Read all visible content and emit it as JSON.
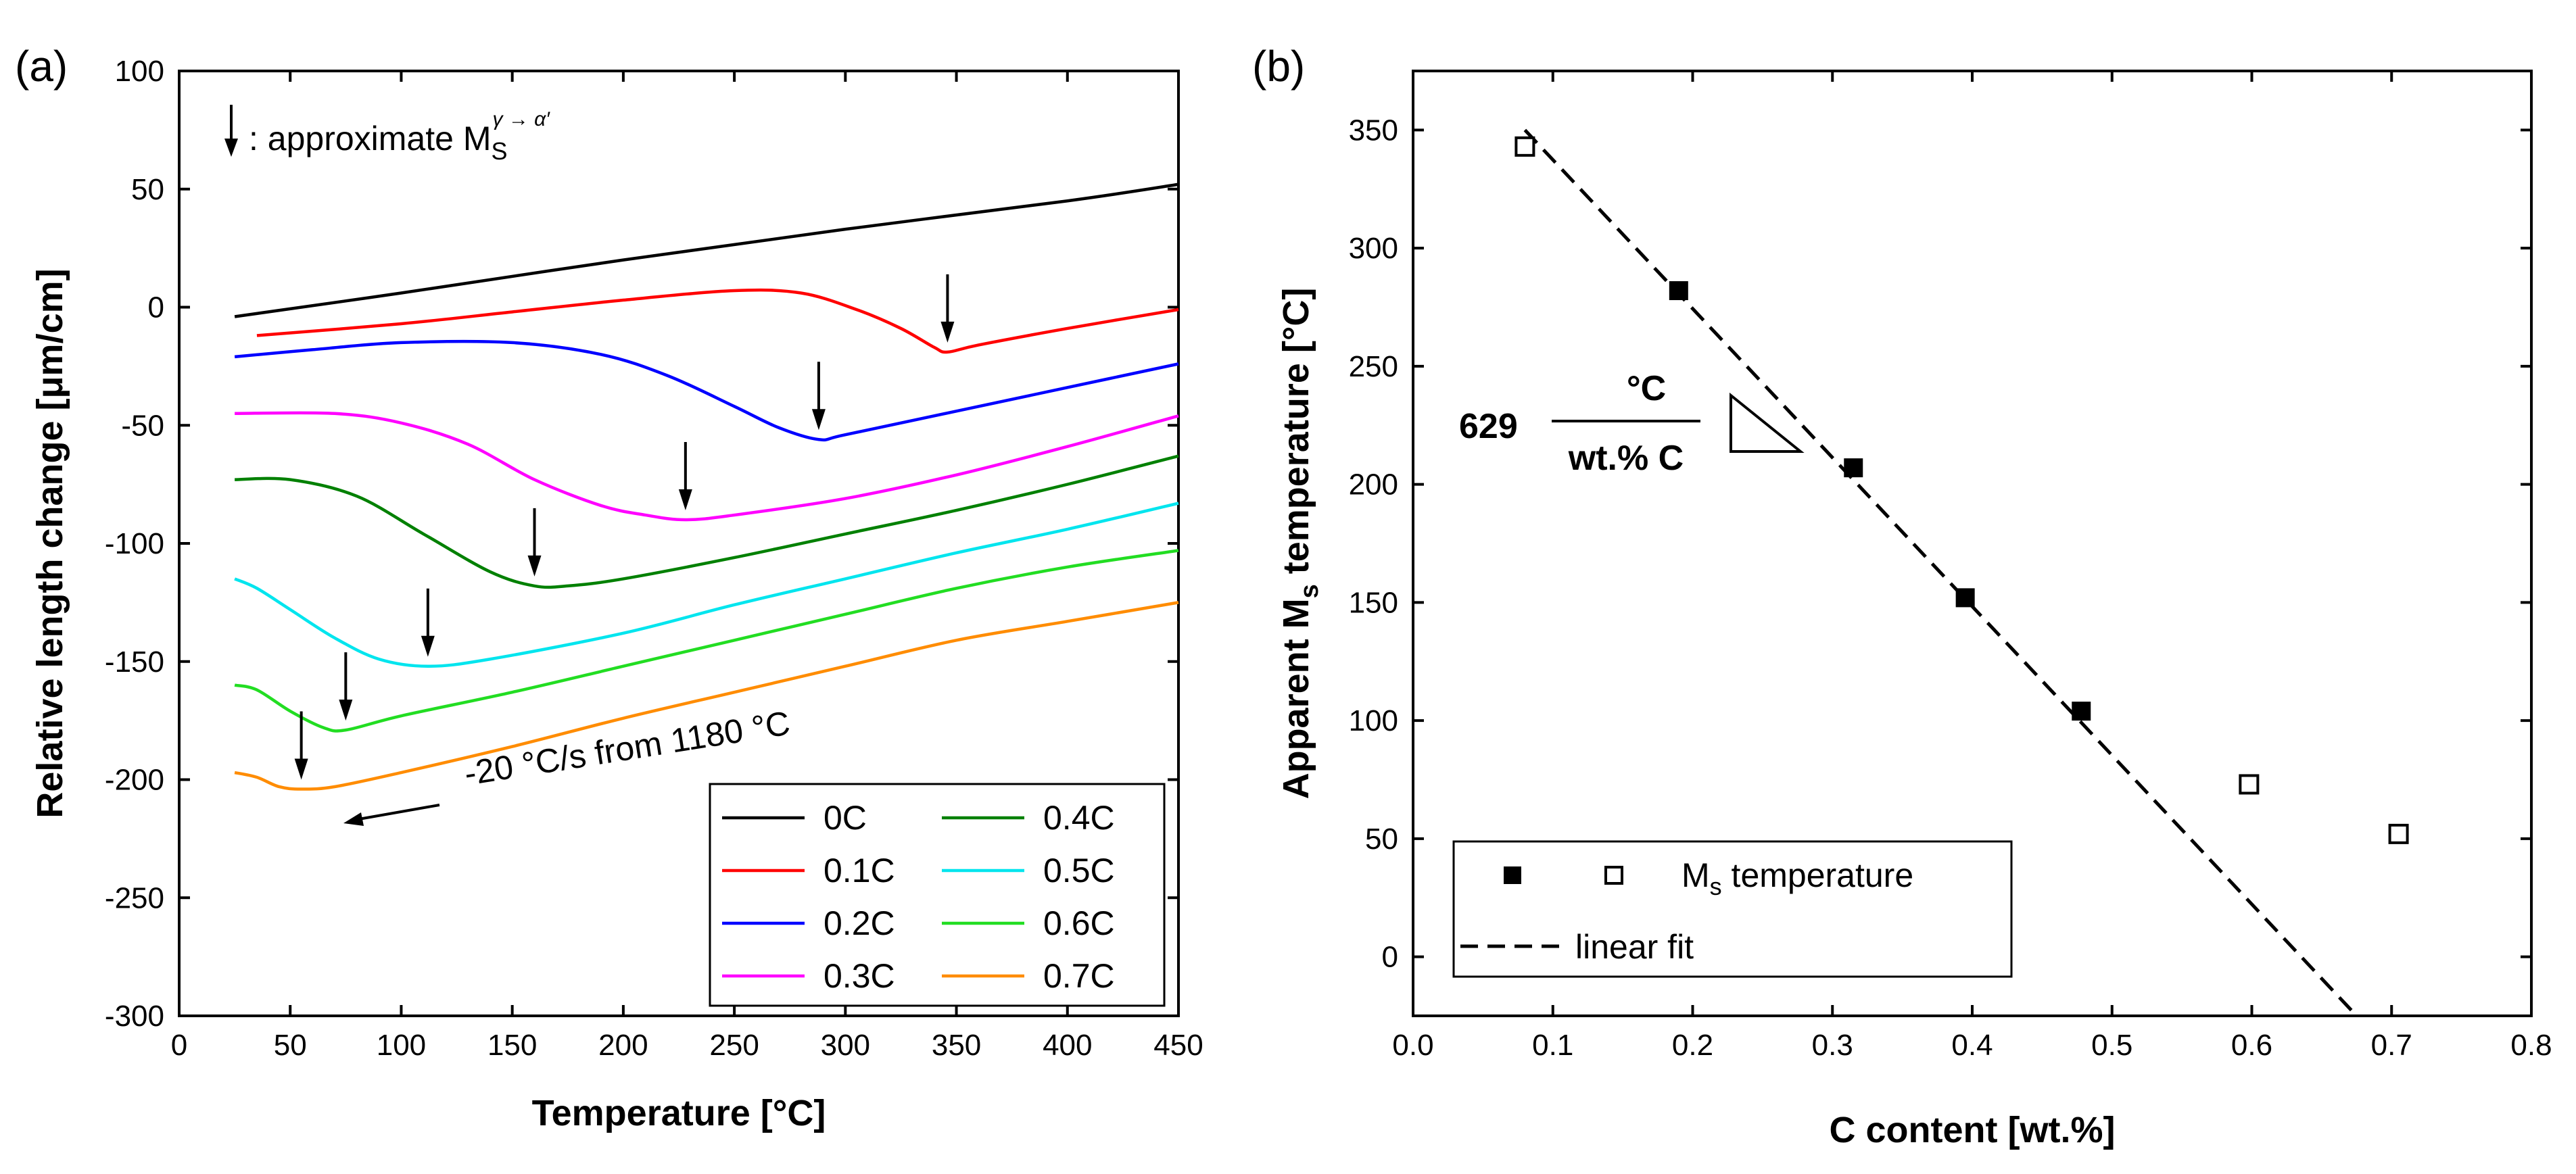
{
  "chart_data": [
    {
      "panel": "(a)",
      "type": "line",
      "xlabel": "Temperature [°C]",
      "ylabel": "Relative length change [μm/cm]",
      "xlim": [
        0,
        450
      ],
      "ylim": [
        -300,
        100
      ],
      "xticks": [
        0,
        50,
        100,
        150,
        200,
        250,
        300,
        350,
        400,
        450
      ],
      "yticks": [
        -300,
        -250,
        -200,
        -150,
        -100,
        -50,
        0,
        50,
        100
      ],
      "annotation_ms": {
        "prefix": ": approximate M",
        "sub": "S",
        "sup": "γ → α′"
      },
      "cooling_note": "-20 °C/s from 1180 °C",
      "series": [
        {
          "name": "0C",
          "color": "#000000",
          "points": [
            [
              25,
              -4
            ],
            [
              100,
              6
            ],
            [
              200,
              20
            ],
            [
              300,
              33
            ],
            [
              400,
              45
            ],
            [
              450,
              52
            ]
          ],
          "ms": null
        },
        {
          "name": "0.1C",
          "color": "#ff0000",
          "points": [
            [
              35,
              -12
            ],
            [
              100,
              -7
            ],
            [
              150,
              -2
            ],
            [
              200,
              3
            ],
            [
              250,
              7
            ],
            [
              280,
              6
            ],
            [
              305,
              -1
            ],
            [
              325,
              -9
            ],
            [
              340,
              -17
            ],
            [
              346,
              -19
            ],
            [
              360,
              -16
            ],
            [
              400,
              -9
            ],
            [
              450,
              -1
            ]
          ],
          "ms": [
            346,
            -19
          ]
        },
        {
          "name": "0.2C",
          "color": "#0000ff",
          "points": [
            [
              25,
              -21
            ],
            [
              60,
              -18
            ],
            [
              100,
              -15
            ],
            [
              150,
              -15
            ],
            [
              190,
              -20
            ],
            [
              220,
              -29
            ],
            [
              250,
              -42
            ],
            [
              270,
              -51
            ],
            [
              288,
              -56
            ],
            [
              300,
              -54
            ],
            [
              350,
              -44
            ],
            [
              400,
              -34
            ],
            [
              450,
              -24
            ]
          ],
          "ms": [
            288,
            -56
          ]
        },
        {
          "name": "0.3C",
          "color": "#ff00ff",
          "points": [
            [
              25,
              -45
            ],
            [
              70,
              -45
            ],
            [
              100,
              -49
            ],
            [
              130,
              -58
            ],
            [
              160,
              -73
            ],
            [
              190,
              -84
            ],
            [
              210,
              -88
            ],
            [
              228,
              -90
            ],
            [
              250,
              -88
            ],
            [
              300,
              -81
            ],
            [
              350,
              -71
            ],
            [
              400,
              -59
            ],
            [
              450,
              -46
            ]
          ],
          "ms": [
            228,
            -90
          ]
        },
        {
          "name": "0.4C",
          "color": "#008000",
          "points": [
            [
              25,
              -73
            ],
            [
              50,
              -73
            ],
            [
              80,
              -80
            ],
            [
              110,
              -96
            ],
            [
              140,
              -112
            ],
            [
              160,
              -118
            ],
            [
              175,
              -118
            ],
            [
              200,
              -115
            ],
            [
              250,
              -106
            ],
            [
              300,
              -96
            ],
            [
              350,
              -86
            ],
            [
              400,
              -75
            ],
            [
              450,
              -63
            ]
          ],
          "ms": [
            160,
            -118
          ]
        },
        {
          "name": "0.5C",
          "color": "#00e5ee",
          "points": [
            [
              25,
              -115
            ],
            [
              35,
              -119
            ],
            [
              50,
              -128
            ],
            [
              70,
              -140
            ],
            [
              90,
              -149
            ],
            [
              112,
              -152
            ],
            [
              140,
              -149
            ],
            [
              200,
              -138
            ],
            [
              250,
              -126
            ],
            [
              300,
              -115
            ],
            [
              350,
              -104
            ],
            [
              400,
              -94
            ],
            [
              450,
              -83
            ]
          ],
          "ms": [
            112,
            -152
          ]
        },
        {
          "name": "0.6C",
          "color": "#22dd22",
          "points": [
            [
              25,
              -160
            ],
            [
              35,
              -162
            ],
            [
              50,
              -171
            ],
            [
              65,
              -178
            ],
            [
              75,
              -179
            ],
            [
              100,
              -173
            ],
            [
              150,
              -163
            ],
            [
              200,
              -152
            ],
            [
              250,
              -141
            ],
            [
              300,
              -130
            ],
            [
              350,
              -119
            ],
            [
              400,
              -110
            ],
            [
              450,
              -103
            ]
          ],
          "ms": [
            75,
            -179
          ]
        },
        {
          "name": "0.7C",
          "color": "#ff8c00",
          "points": [
            [
              25,
              -197
            ],
            [
              35,
              -199
            ],
            [
              45,
              -203
            ],
            [
              55,
              -204
            ],
            [
              70,
              -203
            ],
            [
              100,
              -197
            ],
            [
              150,
              -186
            ],
            [
              200,
              -174
            ],
            [
              250,
              -163
            ],
            [
              300,
              -152
            ],
            [
              350,
              -141
            ],
            [
              400,
              -133
            ],
            [
              450,
              -125
            ]
          ],
          "ms": [
            55,
            -204
          ]
        }
      ]
    },
    {
      "panel": "(b)",
      "type": "scatter",
      "xlabel": "C content [wt.%]",
      "ylabel_main": "Apparent M",
      "ylabel_sub": "s",
      "ylabel_tail": " temperature [°C]",
      "xlim": [
        0.0,
        0.8
      ],
      "ylim": [
        -25,
        375
      ],
      "xticks": [
        "0.0",
        "0.1",
        "0.2",
        "0.3",
        "0.4",
        "0.5",
        "0.6",
        "0.7",
        "0.8"
      ],
      "yticks": [
        0,
        50,
        100,
        150,
        200,
        250,
        300,
        350
      ],
      "filled_points": [
        [
          0.19,
          282
        ],
        [
          0.315,
          207
        ],
        [
          0.395,
          152
        ],
        [
          0.478,
          104
        ]
      ],
      "open_points": [
        [
          0.08,
          343
        ],
        [
          0.598,
          73
        ],
        [
          0.705,
          52
        ]
      ],
      "fit_line": [
        [
          0.08,
          350
        ],
        [
          0.675,
          -25
        ]
      ],
      "slope_annotation": {
        "value": "629",
        "numerator": "°C",
        "denominator": "wt.% C"
      },
      "legend": {
        "ms_prefix": "M",
        "ms_sub": "s",
        "ms_suffix": " temperature",
        "fit": "linear fit"
      }
    }
  ]
}
